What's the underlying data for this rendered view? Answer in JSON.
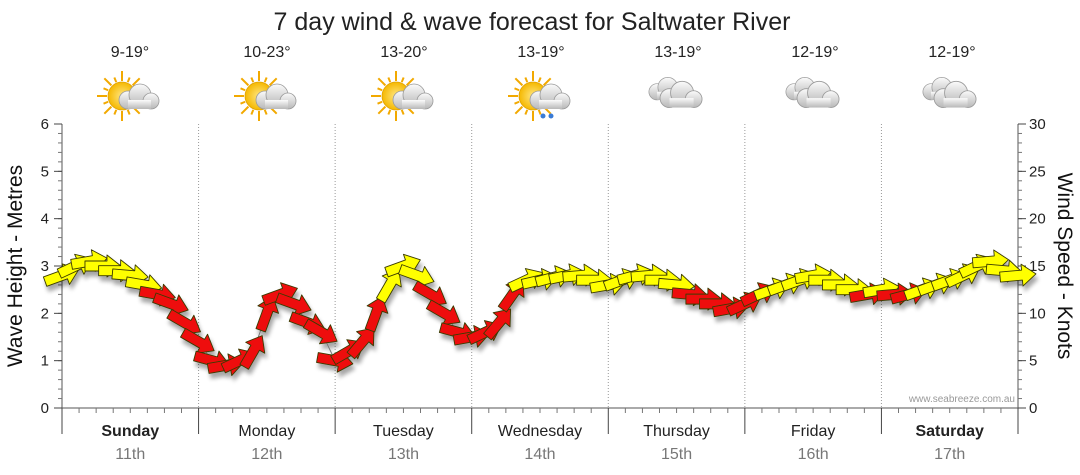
{
  "chart_data": {
    "type": "line",
    "title": "7 day wind & wave forecast for Saltwater River",
    "ylabel_left": "Wave Height - Metres",
    "ylabel_right": "Wind Speed - Knots",
    "ylim_left": [
      0,
      6
    ],
    "ylim_right": [
      0,
      30
    ],
    "yticks_left": [
      "0",
      "1",
      "2",
      "3",
      "4",
      "5",
      "6"
    ],
    "yticks_right": [
      "0",
      "5",
      "10",
      "15",
      "20",
      "25",
      "30"
    ],
    "watermark": "www.seabreeze.com.au",
    "days": [
      {
        "name": "Sunday",
        "date": "11th",
        "temp": "9-19°",
        "icon": "sun-cloud-icon",
        "bold": true
      },
      {
        "name": "Monday",
        "date": "12th",
        "temp": "10-23°",
        "icon": "sun-cloud-icon",
        "bold": false
      },
      {
        "name": "Tuesday",
        "date": "13th",
        "temp": "13-20°",
        "icon": "sun-cloud-icon",
        "bold": false
      },
      {
        "name": "Wednesday",
        "date": "14th",
        "temp": "13-19°",
        "icon": "sun-cloud-rain-icon",
        "bold": false
      },
      {
        "name": "Thursday",
        "date": "15th",
        "temp": "13-19°",
        "icon": "cloud-icon",
        "bold": false
      },
      {
        "name": "Friday",
        "date": "16th",
        "temp": "12-19°",
        "icon": "cloud-icon",
        "bold": false
      },
      {
        "name": "Saturday",
        "date": "17th",
        "temp": "12-19°",
        "icon": "cloud-icon",
        "bold": true
      }
    ],
    "series": [
      {
        "kind": "wind_speed_knots",
        "x_day": [
          0.0,
          0.1,
          0.2,
          0.3,
          0.4,
          0.5,
          0.6,
          0.7,
          0.8,
          0.9,
          1.0,
          1.1,
          1.2,
          1.3,
          1.4,
          1.5,
          1.6,
          1.7,
          1.8,
          1.9,
          2.0,
          2.1,
          2.2,
          2.3,
          2.4,
          2.5,
          2.6,
          2.7,
          2.8,
          2.9,
          3.0,
          3.1,
          3.2,
          3.3,
          3.4,
          3.5,
          3.6,
          3.7,
          3.8,
          3.9,
          4.0,
          4.1,
          4.2,
          4.3,
          4.4,
          4.5,
          4.6,
          4.7,
          4.8,
          4.9,
          5.0,
          5.1,
          5.2,
          5.3,
          5.4,
          5.5,
          5.6,
          5.7,
          5.8,
          5.9,
          6.0,
          6.1,
          6.2,
          6.3,
          6.4,
          6.5,
          6.6,
          6.7,
          6.8,
          6.9,
          7.0
        ],
        "values": [
          14,
          15,
          15.5,
          15,
          14.5,
          14,
          13,
          12,
          11,
          9,
          7,
          5,
          4.5,
          5,
          6,
          10,
          12,
          11,
          9,
          8,
          5,
          6,
          7,
          10,
          13,
          15,
          14,
          12,
          10,
          8,
          7.5,
          8,
          9,
          12,
          13.5,
          13.5,
          13.8,
          14,
          14,
          13.5,
          13,
          13.5,
          14,
          14,
          13.5,
          13,
          12,
          11.5,
          11,
          10.5,
          11,
          12,
          12.5,
          13,
          13.5,
          14,
          13.5,
          13,
          12.5,
          12,
          12.5,
          12,
          12,
          12.5,
          13,
          13.5,
          14,
          15,
          15.5,
          14.5,
          14
        ]
      }
    ]
  }
}
